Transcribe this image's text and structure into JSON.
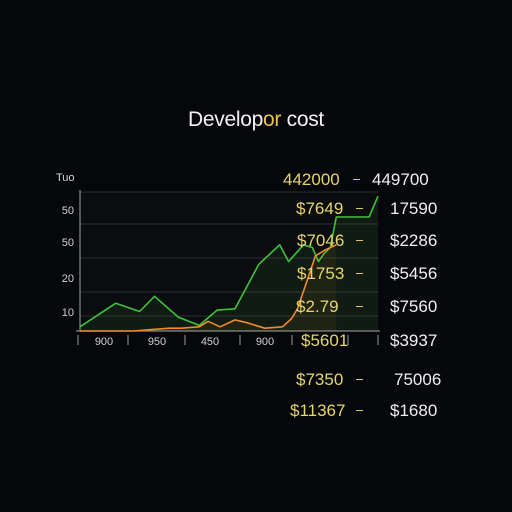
{
  "title_prefix": "Develop",
  "title_highlight": "or",
  "title_suffix": " cost",
  "colors": {
    "background": "#06070b",
    "green": "#3fc23a",
    "orange": "#f08a2a",
    "yellow": "#e6d56a"
  },
  "right_labels": {
    "col_a": [
      "$7649",
      "$7046",
      "$1753",
      "$2.79",
      "$5601",
      "$7350",
      "$11367"
    ],
    "col_a_top": "442000",
    "col_b": [
      "449700",
      "17590",
      "$2286",
      "$5456",
      "$7560",
      "$3937",
      "75006",
      "$1680"
    ]
  },
  "chart_data": {
    "type": "line",
    "title": "Developor cost",
    "ylabel": "Tuo",
    "ytick_labels": [
      "10",
      "20",
      "50",
      "50"
    ],
    "xtick_labels": [
      "900",
      "950",
      "450",
      "900"
    ],
    "ylim": [
      0,
      100
    ],
    "xlim": [
      0,
      100
    ],
    "series": [
      {
        "color": "#3fc23a",
        "x": [
          0,
          12,
          20,
          25,
          33,
          40,
          46,
          52,
          60,
          67,
          70,
          75,
          78,
          80,
          82,
          84,
          86,
          88,
          91,
          97,
          100
        ],
        "y": [
          3,
          20,
          14,
          25,
          10,
          4,
          15,
          16,
          48,
          62,
          50,
          62,
          60,
          50,
          56,
          60,
          82,
          82,
          82,
          82,
          97
        ]
      },
      {
        "color": "#f08a2a",
        "x": [
          0,
          18,
          24,
          30,
          34,
          40,
          43,
          47,
          52,
          56,
          62,
          68,
          71,
          73,
          76,
          79,
          82,
          84,
          86
        ],
        "y": [
          0,
          0,
          1,
          2,
          2,
          3,
          7,
          3,
          8,
          6,
          2,
          3,
          9,
          16,
          35,
          54,
          58,
          60,
          62
        ]
      }
    ],
    "grid": true
  }
}
